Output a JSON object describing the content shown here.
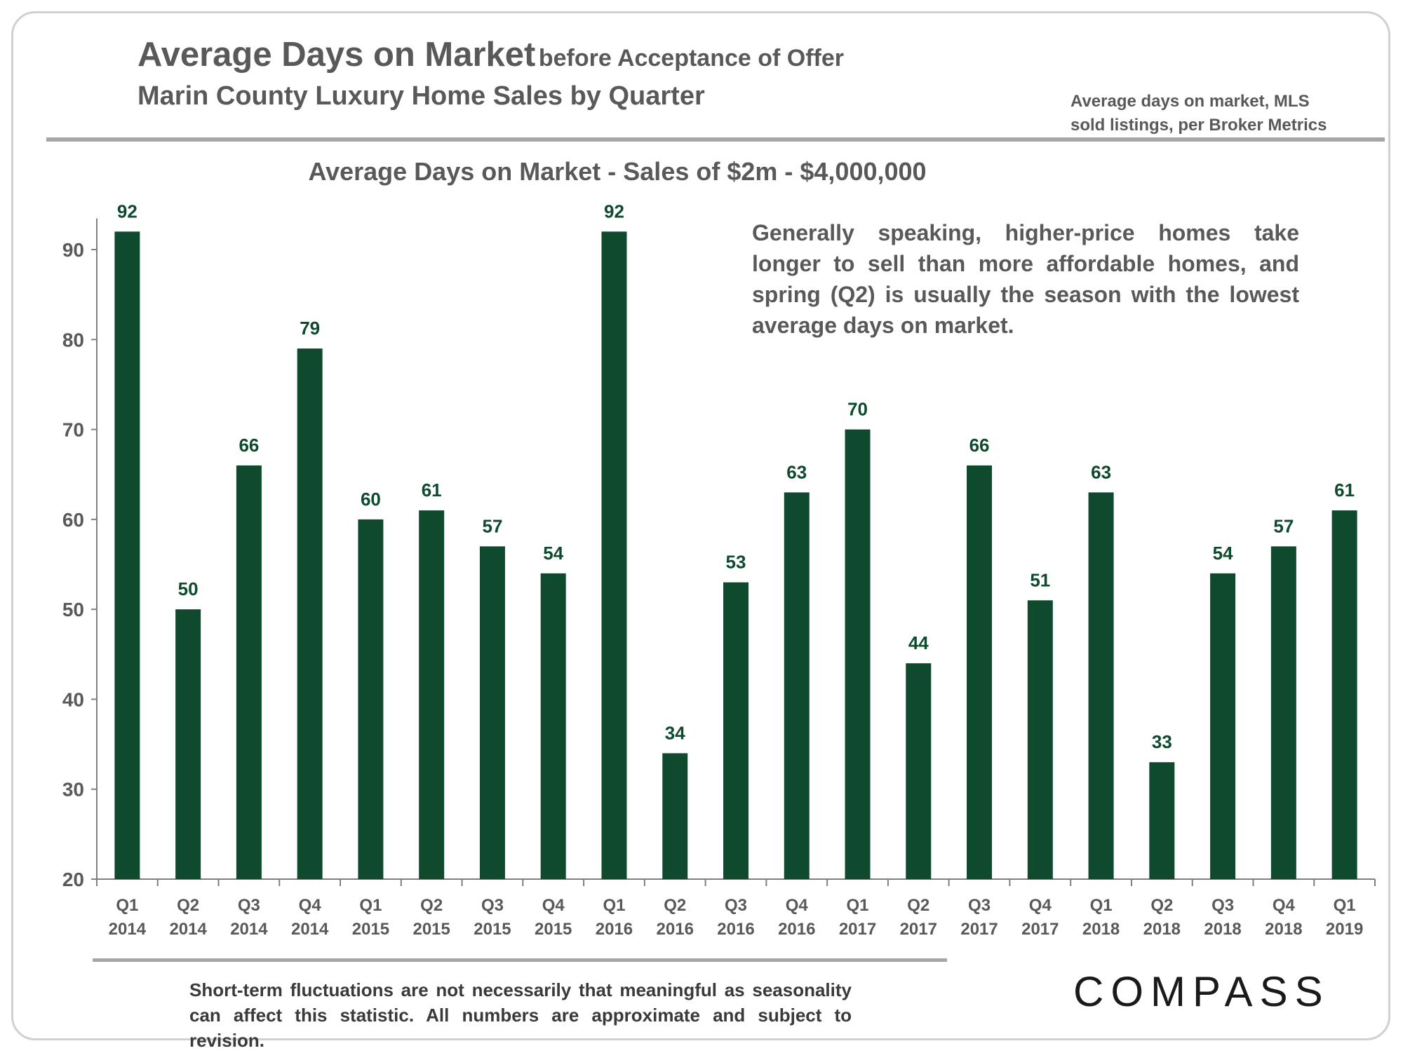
{
  "header": {
    "title_main": "Average Days on Market",
    "title_suffix": "before Acceptance of Offer",
    "subtitle": "Marin County Luxury Home Sales by Quarter",
    "source_line1": "Average days on market, MLS",
    "source_line2": "sold listings, per Broker Metrics"
  },
  "annotation": "Generally speaking, higher-price homes take longer to sell than more affordable homes, and spring (Q2) is usually the season with the lowest average days on market.",
  "footnote": "Short-term fluctuations are not necessarily that meaningful as seasonality can affect this statistic. All numbers are approximate and subject to revision.",
  "logo": "COMPASS",
  "colors": {
    "bar": "#0f4a2e",
    "label": "#0f4a2e",
    "text": "#595959",
    "axis": "#7f7f7f"
  },
  "chart_data": {
    "type": "bar",
    "title": "Average Days on Market - Sales of $2m - $4,000,000",
    "xlabel": "",
    "ylabel": "",
    "ylim": [
      20,
      93
    ],
    "yticks": [
      20,
      30,
      40,
      50,
      60,
      70,
      80,
      90
    ],
    "categories": [
      [
        "Q1",
        "2014"
      ],
      [
        "Q2",
        "2014"
      ],
      [
        "Q3",
        "2014"
      ],
      [
        "Q4",
        "2014"
      ],
      [
        "Q1",
        "2015"
      ],
      [
        "Q2",
        "2015"
      ],
      [
        "Q3",
        "2015"
      ],
      [
        "Q4",
        "2015"
      ],
      [
        "Q1",
        "2016"
      ],
      [
        "Q2",
        "2016"
      ],
      [
        "Q3",
        "2016"
      ],
      [
        "Q4",
        "2016"
      ],
      [
        "Q1",
        "2017"
      ],
      [
        "Q2",
        "2017"
      ],
      [
        "Q3",
        "2017"
      ],
      [
        "Q4",
        "2017"
      ],
      [
        "Q1",
        "2018"
      ],
      [
        "Q2",
        "2018"
      ],
      [
        "Q3",
        "2018"
      ],
      [
        "Q4",
        "2018"
      ],
      [
        "Q1",
        "2019"
      ]
    ],
    "values": [
      92,
      50,
      66,
      79,
      60,
      61,
      57,
      54,
      92,
      34,
      53,
      63,
      70,
      44,
      66,
      51,
      63,
      33,
      54,
      57,
      61
    ],
    "grid": false,
    "data_labels": true
  }
}
